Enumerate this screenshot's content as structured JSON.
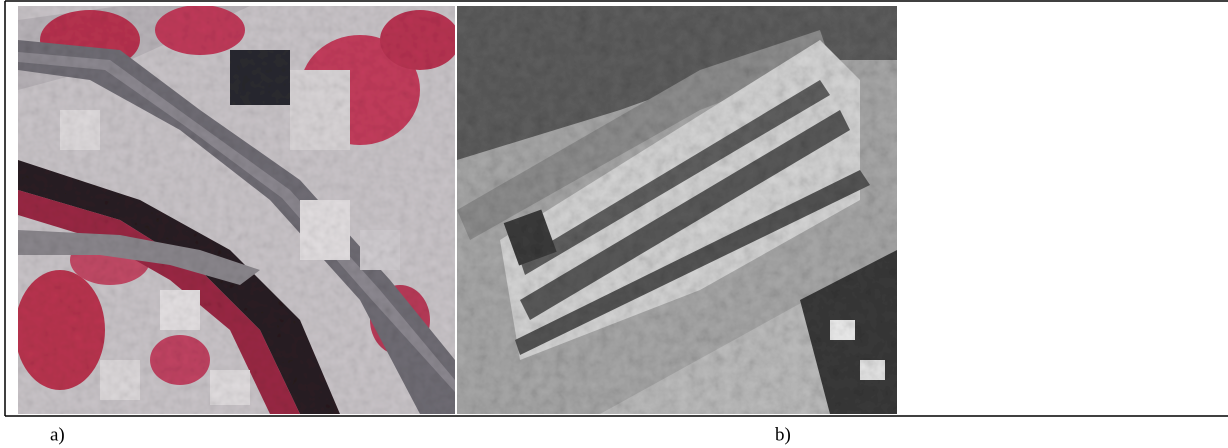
{
  "figure": {
    "panels": [
      {
        "caption": "a)"
      },
      {
        "caption": "b)"
      }
    ]
  }
}
